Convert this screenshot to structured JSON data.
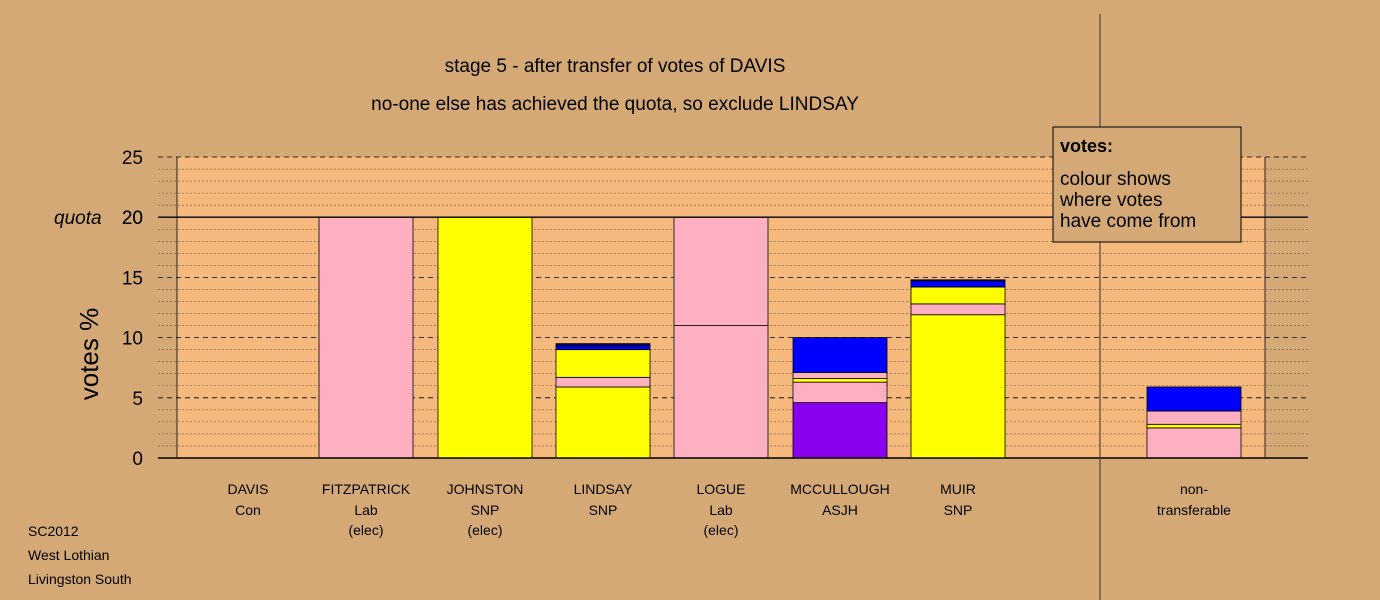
{
  "chart_data": {
    "type": "bar",
    "stacked": true,
    "title": "stage 5 - after transfer of votes of DAVIS",
    "subtitle": "no-one else has achieved the quota, so exclude LINDSAY",
    "ylabel": "votes %",
    "ylim": [
      0,
      25
    ],
    "yticks": [
      "0",
      "5",
      "10",
      "15",
      "20",
      "25"
    ],
    "quota": {
      "label": "quota",
      "value": 20
    },
    "grid": true,
    "colors": {
      "Lab": "#ffb0c0",
      "SNP": "#ffff00",
      "ASJH": "#8800ee",
      "Con": "#0000ff",
      "navy": "#000080",
      "plot_bg": "#f5b97e",
      "page_bg": "#d4a976"
    },
    "categories": [
      {
        "name": "DAVIS",
        "party": "Con",
        "note": "",
        "segments": []
      },
      {
        "name": "FITZPATRICK",
        "party": "Lab",
        "note": "(elec)",
        "segments": [
          {
            "color": "Lab",
            "value": 20.0
          }
        ]
      },
      {
        "name": "JOHNSTON",
        "party": "SNP",
        "note": "(elec)",
        "segments": [
          {
            "color": "SNP",
            "value": 20.0
          }
        ]
      },
      {
        "name": "LINDSAY",
        "party": "SNP",
        "note": "",
        "segments": [
          {
            "color": "SNP",
            "value": 5.9
          },
          {
            "color": "Lab",
            "value": 0.8
          },
          {
            "color": "SNP",
            "value": 2.3
          },
          {
            "color": "Con",
            "value": 0.3
          },
          {
            "color": "navy",
            "value": 0.2
          }
        ]
      },
      {
        "name": "LOGUE",
        "party": "Lab",
        "note": "(elec)",
        "segments": [
          {
            "color": "Lab",
            "value": 11.0
          },
          {
            "color": "Lab",
            "value": 9.0
          }
        ]
      },
      {
        "name": "MCCULLOUGH",
        "party": "ASJH",
        "note": "",
        "segments": [
          {
            "color": "ASJH",
            "value": 4.6
          },
          {
            "color": "Lab",
            "value": 1.7
          },
          {
            "color": "SNP",
            "value": 0.3
          },
          {
            "color": "Lab",
            "value": 0.5
          },
          {
            "color": "Con",
            "value": 2.9
          }
        ]
      },
      {
        "name": "MUIR",
        "party": "SNP",
        "note": "",
        "segments": [
          {
            "color": "SNP",
            "value": 11.9
          },
          {
            "color": "Lab",
            "value": 0.9
          },
          {
            "color": "SNP",
            "value": 1.4
          },
          {
            "color": "Con",
            "value": 0.5
          },
          {
            "color": "navy",
            "value": 0.1
          }
        ]
      }
    ],
    "non_transferable": {
      "label_line1": "non-",
      "label_line2": "transferable",
      "segments": [
        {
          "color": "Lab",
          "value": 2.5
        },
        {
          "color": "SNP",
          "value": 0.3
        },
        {
          "color": "Lab",
          "value": 1.1
        },
        {
          "color": "Con",
          "value": 2.0
        }
      ]
    },
    "legend": {
      "title": "votes:",
      "lines": [
        "colour shows",
        "where votes",
        "have come from"
      ]
    }
  },
  "footer": {
    "lines": [
      "SC2012",
      "West Lothian",
      "Livingston South"
    ]
  }
}
